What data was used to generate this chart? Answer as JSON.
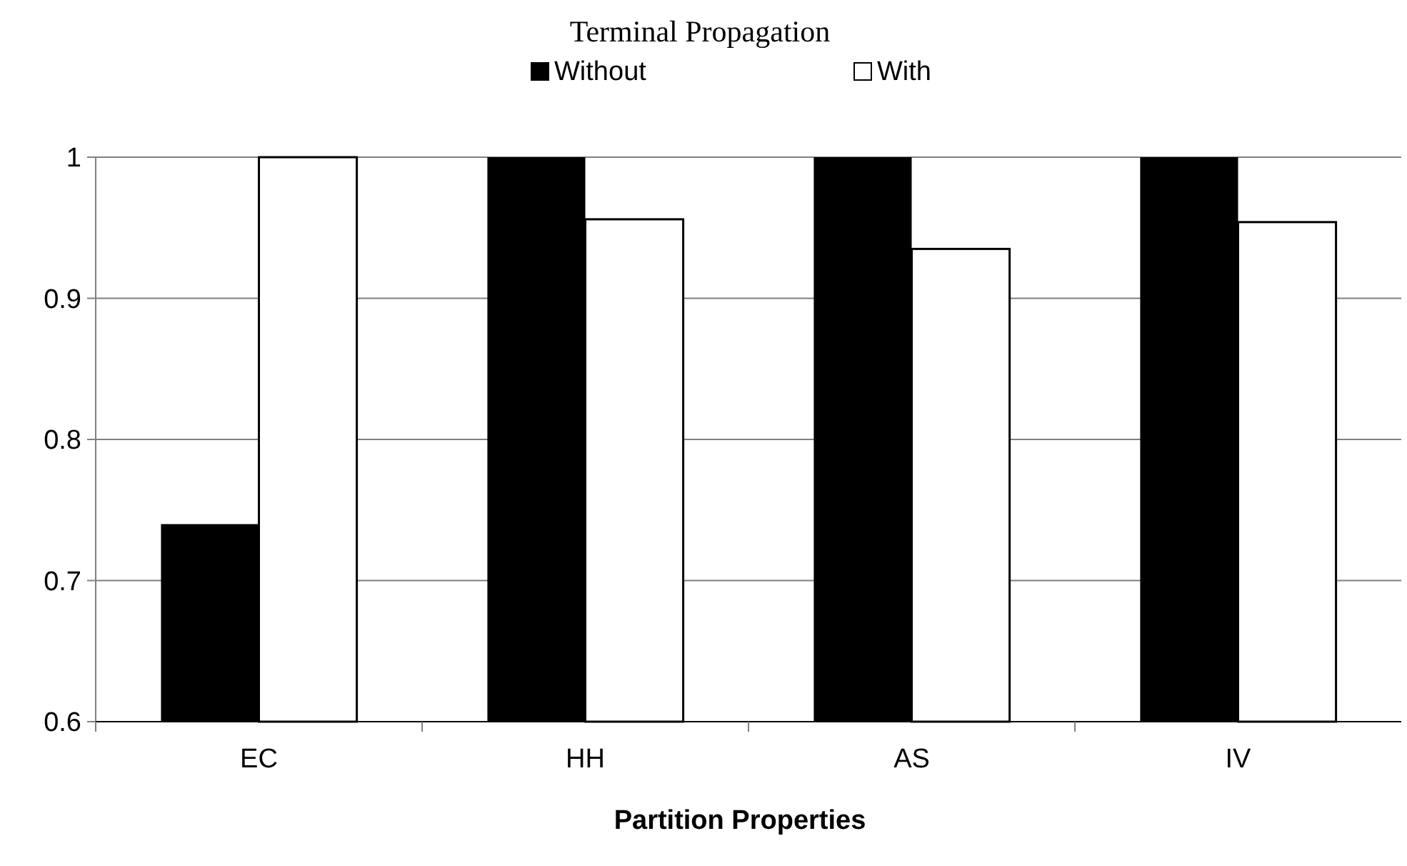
{
  "chart_data": {
    "type": "bar",
    "title": "Terminal Propagation",
    "xlabel": "Partition Properties",
    "categories": [
      "EC",
      "HH",
      "AS",
      "IV"
    ],
    "series": [
      {
        "name": "Without",
        "color": "#000000",
        "values": [
          0.74,
          1.0,
          1.0,
          1.0
        ]
      },
      {
        "name": "With",
        "color": "#ffffff",
        "values": [
          1.0,
          0.956,
          0.935,
          0.954
        ]
      }
    ],
    "ylim": [
      0.6,
      1
    ],
    "yticks": [
      0.6,
      0.7,
      0.8,
      0.9,
      1
    ],
    "grid": "y",
    "legend": "top"
  }
}
